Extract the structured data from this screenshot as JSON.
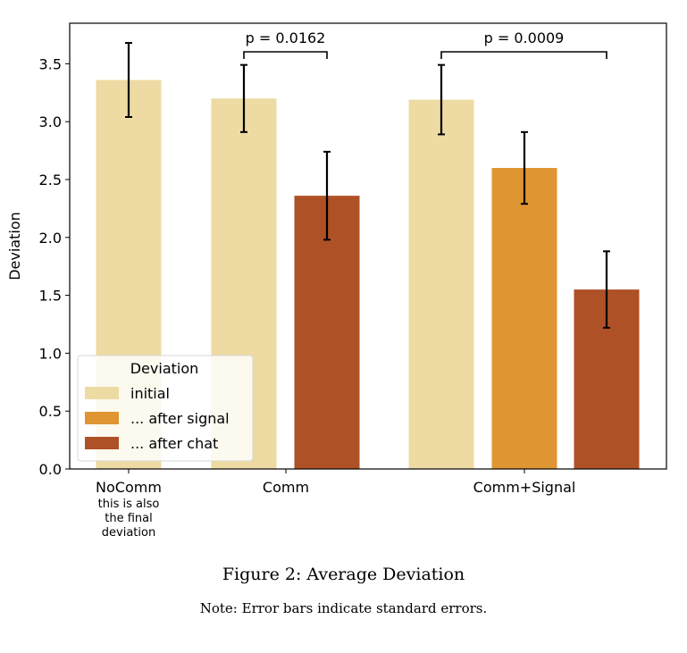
{
  "chart_data": {
    "type": "bar",
    "ylabel": "Deviation",
    "ylim": [
      0,
      3.85
    ],
    "yticks": [
      "0.0",
      "0.5",
      "1.0",
      "1.5",
      "2.0",
      "2.5",
      "3.0",
      "3.5"
    ],
    "groups": [
      {
        "label": "NoComm",
        "sublabel": [
          "this is also",
          "the final",
          "deviation"
        ]
      },
      {
        "label": "Comm",
        "sublabel": []
      },
      {
        "label": "Comm+Signal",
        "sublabel": []
      }
    ],
    "series": [
      {
        "name": "initial",
        "color": "#eddba3",
        "values": [
          3.36,
          3.2,
          3.19
        ],
        "errors": [
          0.32,
          0.29,
          0.3
        ]
      },
      {
        "name": "... after signal",
        "color": "#df9531",
        "values": [
          null,
          null,
          2.6
        ],
        "errors": [
          null,
          null,
          0.31
        ]
      },
      {
        "name": "... after chat",
        "color": "#ae5126",
        "values": [
          null,
          2.36,
          1.55
        ],
        "errors": [
          null,
          0.38,
          0.33
        ]
      }
    ],
    "legend": {
      "title": "Deviation",
      "position": "lower-left"
    },
    "annotations": [
      {
        "text": "p = 0.0162",
        "from": {
          "group": 1,
          "series": 0
        },
        "to": {
          "group": 1,
          "series": 2
        }
      },
      {
        "text": "p = 0.0009",
        "from": {
          "group": 2,
          "series": 0
        },
        "to": {
          "group": 2,
          "series": 2
        }
      }
    ]
  },
  "caption": {
    "figure": "Figure 2:  Average Deviation",
    "note": "Note: Error bars indicate standard errors."
  }
}
